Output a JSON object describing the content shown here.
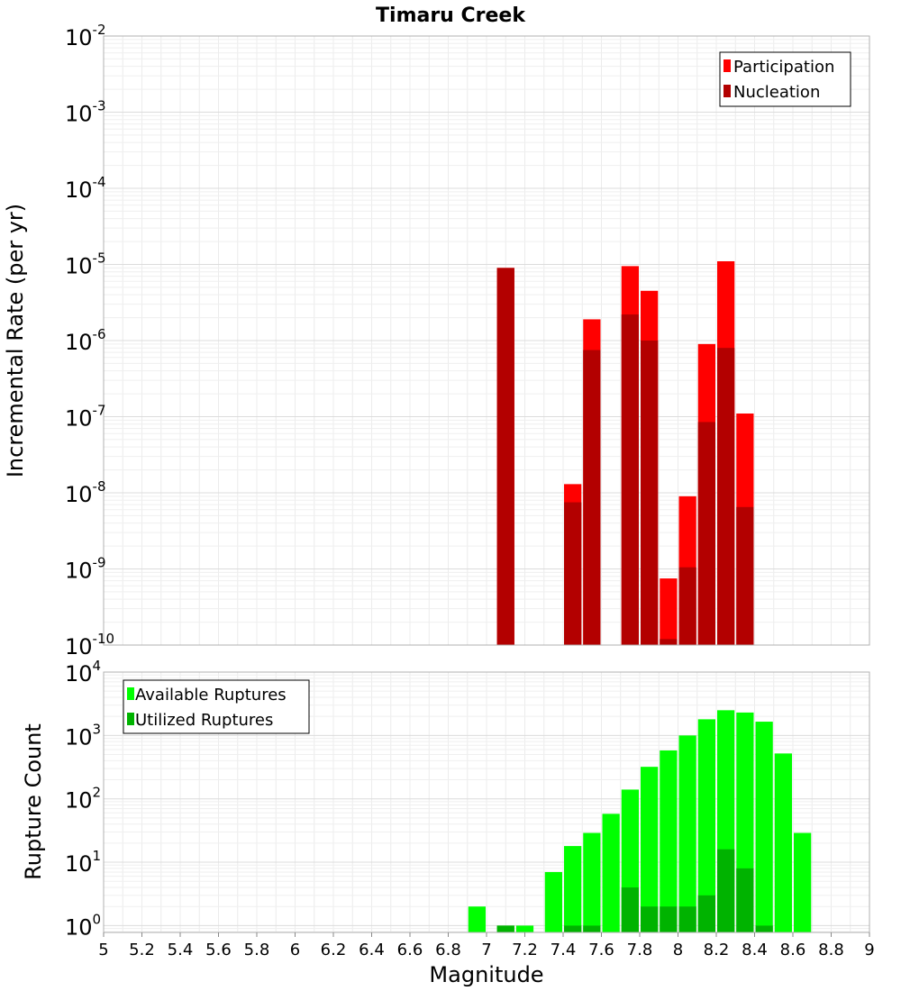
{
  "chart_data": [
    {
      "type": "bar",
      "title": "Timaru Creek",
      "xlabel": "",
      "ylabel": "Incremental Rate (per yr)",
      "yscale": "log",
      "ylim": [
        1e-10,
        0.01
      ],
      "xlim": [
        5,
        9
      ],
      "legend_position": "top-right",
      "grid": true,
      "yticks": [
        {
          "base": "10",
          "exp": "-10",
          "value": 1e-10
        },
        {
          "base": "10",
          "exp": "-9",
          "value": 1e-09
        },
        {
          "base": "10",
          "exp": "-8",
          "value": 1e-08
        },
        {
          "base": "10",
          "exp": "-7",
          "value": 1e-07
        },
        {
          "base": "10",
          "exp": "-6",
          "value": 1e-06
        },
        {
          "base": "10",
          "exp": "-5",
          "value": 1e-05
        },
        {
          "base": "10",
          "exp": "-4",
          "value": 0.0001
        },
        {
          "base": "10",
          "exp": "-3",
          "value": 0.001
        },
        {
          "base": "10",
          "exp": "-2",
          "value": 0.01
        }
      ],
      "series": [
        {
          "name": "Participation",
          "color": "#ff0000",
          "x": [
            7.1,
            7.45,
            7.55,
            7.75,
            7.85,
            7.95,
            8.05,
            8.15,
            8.25,
            8.35
          ],
          "values": [
            9e-06,
            1.3e-08,
            1.9e-06,
            9.5e-06,
            4.5e-06,
            7.5e-10,
            9e-09,
            9e-07,
            1.1e-05,
            1.1e-07
          ]
        },
        {
          "name": "Nucleation",
          "color": "#b30000",
          "x": [
            7.1,
            7.45,
            7.55,
            7.75,
            7.85,
            7.95,
            8.05,
            8.15,
            8.25,
            8.35
          ],
          "values": [
            9e-06,
            7.5e-09,
            7.5e-07,
            2.2e-06,
            1e-06,
            1.2e-10,
            1.05e-09,
            8.5e-08,
            8e-07,
            6.5e-09
          ]
        }
      ]
    },
    {
      "type": "bar",
      "title": "",
      "xlabel": "Magnitude",
      "ylabel": "Rupture Count",
      "yscale": "log",
      "ylim": [
        0.78,
        10000
      ],
      "xlim": [
        5,
        9
      ],
      "legend_position": "top-left",
      "grid": true,
      "yticks": [
        {
          "base": "10",
          "exp": "0",
          "value": 1
        },
        {
          "base": "10",
          "exp": "1",
          "value": 10
        },
        {
          "base": "10",
          "exp": "2",
          "value": 100
        },
        {
          "base": "10",
          "exp": "3",
          "value": 1000
        },
        {
          "base": "10",
          "exp": "4",
          "value": 10000
        }
      ],
      "xticks": [
        "5",
        "5.2",
        "5.4",
        "5.6",
        "5.8",
        "6",
        "6.2",
        "6.4",
        "6.6",
        "6.8",
        "7",
        "7.2",
        "7.4",
        "7.6",
        "7.8",
        "8",
        "8.2",
        "8.4",
        "8.6",
        "8.8",
        "9"
      ],
      "series": [
        {
          "name": "Available Ruptures",
          "color": "#00ff00",
          "x": [
            6.95,
            7.1,
            7.2,
            7.35,
            7.45,
            7.55,
            7.65,
            7.75,
            7.85,
            7.95,
            8.05,
            8.15,
            8.25,
            8.35,
            8.45,
            8.55,
            8.65
          ],
          "values": [
            2,
            1,
            1,
            7,
            18,
            29,
            58,
            140,
            320,
            580,
            1000,
            1800,
            2500,
            2300,
            1650,
            520,
            29
          ]
        },
        {
          "name": "Utilized Ruptures",
          "color": "#00b300",
          "x": [
            7.1,
            7.45,
            7.55,
            7.75,
            7.85,
            7.95,
            8.05,
            8.15,
            8.25,
            8.35,
            8.45
          ],
          "values": [
            1,
            1,
            1,
            4,
            2,
            2,
            2,
            3,
            16,
            8,
            1
          ]
        }
      ]
    }
  ]
}
